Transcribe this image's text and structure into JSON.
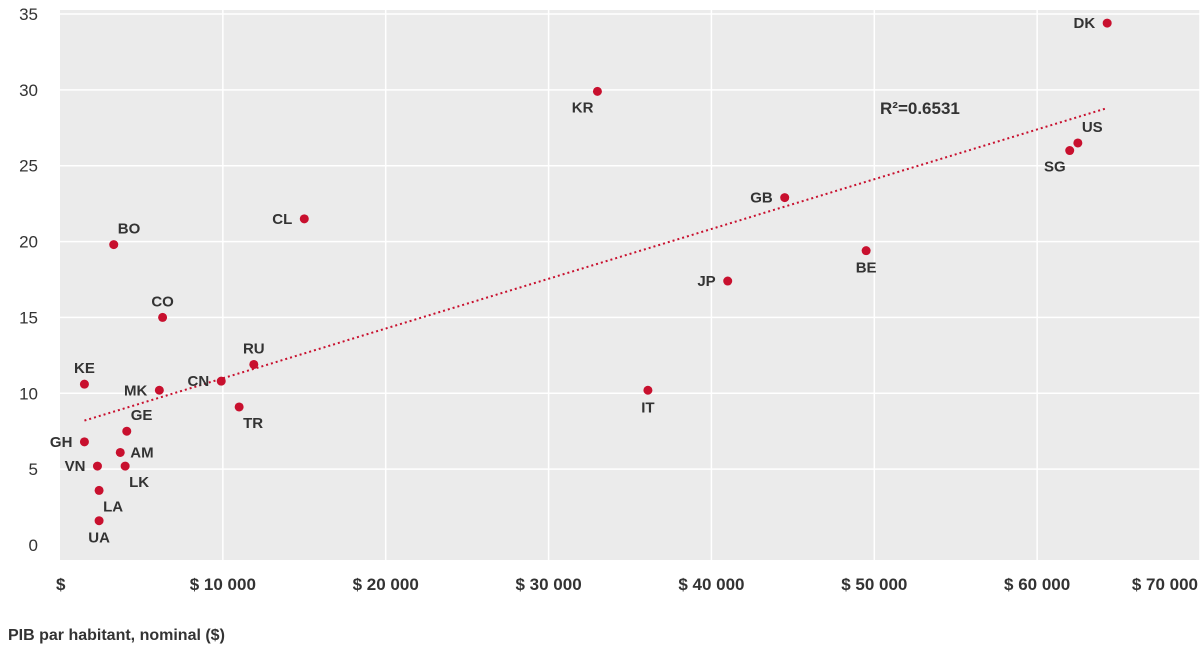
{
  "chart_data": {
    "type": "scatter",
    "xlabel": "PIB par habitant, nominal ($)",
    "ylabel": "",
    "xlim": [
      0,
      70000
    ],
    "ylim": [
      0,
      35
    ],
    "x_ticks": [
      {
        "value": 0,
        "label": "$"
      },
      {
        "value": 10000,
        "label": "$ 10 000"
      },
      {
        "value": 20000,
        "label": "$ 20 000"
      },
      {
        "value": 30000,
        "label": "$ 30 000"
      },
      {
        "value": 40000,
        "label": "$ 40 000"
      },
      {
        "value": 50000,
        "label": "$ 50 000"
      },
      {
        "value": 60000,
        "label": "$ 60 000"
      },
      {
        "value": 70000,
        "label": "$ 70 000"
      }
    ],
    "y_ticks": [
      {
        "value": 0,
        "label": "0"
      },
      {
        "value": 5,
        "label": "5"
      },
      {
        "value": 10,
        "label": "10"
      },
      {
        "value": 15,
        "label": "15"
      },
      {
        "value": 20,
        "label": "20"
      },
      {
        "value": 25,
        "label": "25"
      },
      {
        "value": 30,
        "label": "30"
      },
      {
        "value": 35,
        "label": "35"
      }
    ],
    "grid": "vertical and horizontal",
    "background": "#ebebeb",
    "point_color": "#c8102e",
    "points": [
      {
        "label": "DK",
        "x": 64300,
        "y": 34.4,
        "label_pos": "left"
      },
      {
        "label": "KR",
        "x": 33000,
        "y": 29.9,
        "label_pos": "below-left"
      },
      {
        "label": "US",
        "x": 62500,
        "y": 26.5,
        "label_pos": "above-right"
      },
      {
        "label": "SG",
        "x": 62000,
        "y": 26.0,
        "label_pos": "below-left"
      },
      {
        "label": "GB",
        "x": 44500,
        "y": 22.9,
        "label_pos": "left"
      },
      {
        "label": "CL",
        "x": 15000,
        "y": 21.5,
        "label_pos": "left"
      },
      {
        "label": "BO",
        "x": 3300,
        "y": 19.8,
        "label_pos": "above-right"
      },
      {
        "label": "BE",
        "x": 49500,
        "y": 19.4,
        "label_pos": "below"
      },
      {
        "label": "JP",
        "x": 41000,
        "y": 17.4,
        "label_pos": "left"
      },
      {
        "label": "CO",
        "x": 6300,
        "y": 15.0,
        "label_pos": "above"
      },
      {
        "label": "RU",
        "x": 11900,
        "y": 11.9,
        "label_pos": "above"
      },
      {
        "label": "CN",
        "x": 9900,
        "y": 10.8,
        "label_pos": "left"
      },
      {
        "label": "KE",
        "x": 1500,
        "y": 10.6,
        "label_pos": "above"
      },
      {
        "label": "MK",
        "x": 6100,
        "y": 10.2,
        "label_pos": "left"
      },
      {
        "label": "IT",
        "x": 36100,
        "y": 10.2,
        "label_pos": "below"
      },
      {
        "label": "TR",
        "x": 11000,
        "y": 9.1,
        "label_pos": "below-right"
      },
      {
        "label": "GE",
        "x": 4100,
        "y": 7.5,
        "label_pos": "above-right"
      },
      {
        "label": "GH",
        "x": 1500,
        "y": 6.8,
        "label_pos": "left"
      },
      {
        "label": "AM",
        "x": 3700,
        "y": 6.1,
        "label_pos": "right"
      },
      {
        "label": "VN",
        "x": 2300,
        "y": 5.2,
        "label_pos": "left"
      },
      {
        "label": "LK",
        "x": 4000,
        "y": 5.2,
        "label_pos": "below-right"
      },
      {
        "label": "LA",
        "x": 2400,
        "y": 3.6,
        "label_pos": "below-right"
      },
      {
        "label": "UA",
        "x": 2400,
        "y": 1.6,
        "label_pos": "below"
      }
    ],
    "trendline": {
      "type": "linear",
      "style": "dotted",
      "color": "#c8102e",
      "start": {
        "x": 1500,
        "y": 8.2
      },
      "end": {
        "x": 64300,
        "y": 28.8
      },
      "annotation": "R²=0.6531"
    }
  }
}
